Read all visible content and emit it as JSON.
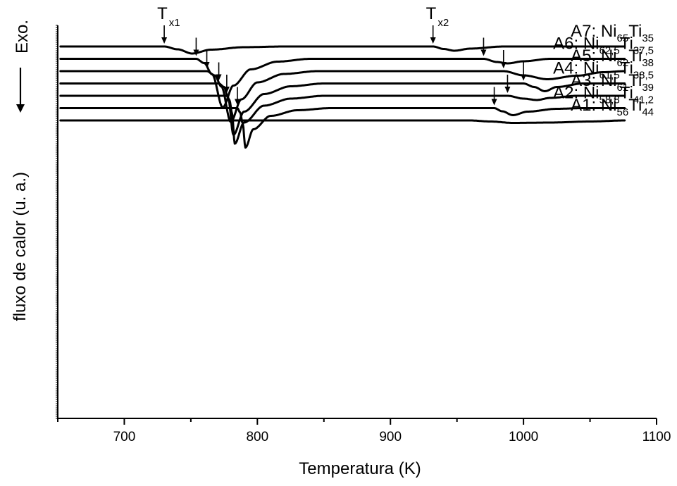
{
  "chart_data": {
    "type": "line",
    "xlabel": "Temperatura (K)",
    "ylabel": "fluxo de calor (u. a.)",
    "exo_label": "Exo.",
    "xlim": [
      650,
      1100
    ],
    "x_ticks": [
      700,
      800,
      900,
      1000,
      1100
    ],
    "tx_labels": [
      {
        "main": "T",
        "sub": "x1",
        "x": 730
      },
      {
        "main": "T",
        "sub": "x2",
        "x": 932
      }
    ],
    "series": [
      {
        "name": "A7",
        "prefix": "A7: Ni",
        "ni": "65",
        "ti": "35",
        "baseline": 0,
        "x_start": 652,
        "x_end": 1076,
        "tx1": 730,
        "tx2": 932,
        "features": [
          {
            "x": 730,
            "d": 0
          },
          {
            "x": 740,
            "d": 0.4
          },
          {
            "x": 751,
            "d": 1.0
          },
          {
            "x": 765,
            "d": 0.45
          },
          {
            "x": 790,
            "d": 0.1
          },
          {
            "x": 820,
            "d": 0
          },
          {
            "x": 932,
            "d": 0
          },
          {
            "x": 940,
            "d": 0.35
          },
          {
            "x": 948,
            "d": 0.6
          },
          {
            "x": 960,
            "d": 0.3
          },
          {
            "x": 985,
            "d": 0
          }
        ]
      },
      {
        "name": "A6",
        "prefix": "A6: Ni",
        "ni": "62,5",
        "ti": "37,5",
        "baseline": -1.75,
        "x_start": 652,
        "x_end": 1076,
        "tx1": 754,
        "tx2": 970,
        "features": [
          {
            "x": 754,
            "d": 0
          },
          {
            "x": 760,
            "d": 0.6
          },
          {
            "x": 766,
            "d": 2.2
          },
          {
            "x": 774,
            "d": 6.9
          },
          {
            "x": 782,
            "d": 3.8
          },
          {
            "x": 795,
            "d": 1.5
          },
          {
            "x": 815,
            "d": 0.4
          },
          {
            "x": 840,
            "d": 0
          },
          {
            "x": 970,
            "d": 0
          },
          {
            "x": 980,
            "d": 0.45
          },
          {
            "x": 988,
            "d": 0.65
          },
          {
            "x": 1000,
            "d": 0.35
          },
          {
            "x": 1020,
            "d": 0
          }
        ]
      },
      {
        "name": "A5",
        "prefix": "A5: Ni",
        "ni": "62",
        "ti": "38",
        "baseline": -3.5,
        "x_start": 652,
        "x_end": 1076,
        "tx1": 762,
        "tx2": 985,
        "features": [
          {
            "x": 762,
            "d": 0
          },
          {
            "x": 768,
            "d": 0.6
          },
          {
            "x": 773,
            "d": 2.2
          },
          {
            "x": 780,
            "d": 7.2
          },
          {
            "x": 788,
            "d": 4.0
          },
          {
            "x": 800,
            "d": 1.6
          },
          {
            "x": 820,
            "d": 0.4
          },
          {
            "x": 845,
            "d": 0
          },
          {
            "x": 985,
            "d": 0
          },
          {
            "x": 1000,
            "d": 0.6
          },
          {
            "x": 1018,
            "d": 1.15
          },
          {
            "x": 1040,
            "d": 0.65
          },
          {
            "x": 1060,
            "d": 0.15
          },
          {
            "x": 1076,
            "d": 0
          }
        ]
      },
      {
        "name": "A4",
        "prefix": "A4: Ni",
        "ni": "61,5",
        "ti": "38,5",
        "baseline": -5.25,
        "x_start": 652,
        "x_end": 1076,
        "tx1": 771,
        "tx2": 1000,
        "features": [
          {
            "x": 771,
            "d": 0
          },
          {
            "x": 775,
            "d": 0.5
          },
          {
            "x": 778,
            "d": 2.0
          },
          {
            "x": 782,
            "d": 7.3
          },
          {
            "x": 790,
            "d": 4.0
          },
          {
            "x": 805,
            "d": 1.5
          },
          {
            "x": 825,
            "d": 0.4
          },
          {
            "x": 850,
            "d": 0
          },
          {
            "x": 1000,
            "d": 0
          },
          {
            "x": 1008,
            "d": 0.5
          },
          {
            "x": 1016,
            "d": 1.1
          },
          {
            "x": 1025,
            "d": 0.5
          },
          {
            "x": 1045,
            "d": 0
          }
        ]
      },
      {
        "name": "A3",
        "prefix": "A3: Ni",
        "ni": "61",
        "ti": "39",
        "baseline": -7.0,
        "x_start": 652,
        "x_end": 1076,
        "tx1": 777,
        "tx2": 988,
        "features": [
          {
            "x": 777,
            "d": 0
          },
          {
            "x": 779,
            "d": 0.6
          },
          {
            "x": 781,
            "d": 2.5
          },
          {
            "x": 783,
            "d": 6.8
          },
          {
            "x": 790,
            "d": 3.8
          },
          {
            "x": 805,
            "d": 1.4
          },
          {
            "x": 825,
            "d": 0.4
          },
          {
            "x": 850,
            "d": 0
          },
          {
            "x": 988,
            "d": 0
          },
          {
            "x": 1000,
            "d": 0.4
          },
          {
            "x": 1010,
            "d": 0.6
          },
          {
            "x": 1020,
            "d": 0.3
          },
          {
            "x": 1040,
            "d": 0
          }
        ]
      },
      {
        "name": "A2",
        "prefix": "A2: Ni",
        "ni": "58,8",
        "ti": "41,2",
        "baseline": -8.75,
        "x_start": 652,
        "x_end": 1076,
        "tx1": 785,
        "tx2": 978,
        "features": [
          {
            "x": 785,
            "d": 0
          },
          {
            "x": 787,
            "d": 0.6
          },
          {
            "x": 789,
            "d": 2.2
          },
          {
            "x": 791,
            "d": 5.6
          },
          {
            "x": 797,
            "d": 3.0
          },
          {
            "x": 810,
            "d": 1.1
          },
          {
            "x": 830,
            "d": 0.3
          },
          {
            "x": 855,
            "d": 0
          },
          {
            "x": 978,
            "d": 0
          },
          {
            "x": 984,
            "d": 0.45
          },
          {
            "x": 992,
            "d": 1.0
          },
          {
            "x": 1003,
            "d": 0.5
          },
          {
            "x": 1025,
            "d": 0.1
          },
          {
            "x": 1045,
            "d": 0
          }
        ]
      },
      {
        "name": "A1",
        "prefix": "A1: Ni",
        "ni": "56",
        "ti": "44",
        "baseline": -10.5,
        "x_start": 652,
        "x_end": 1076,
        "tx1": null,
        "tx2": null,
        "features": [
          {
            "x": 960,
            "d": 0
          },
          {
            "x": 975,
            "d": 0.15
          },
          {
            "x": 992,
            "d": 0.35
          },
          {
            "x": 1020,
            "d": 0.3
          },
          {
            "x": 1050,
            "d": 0.15
          },
          {
            "x": 1076,
            "d": 0
          }
        ]
      }
    ]
  }
}
